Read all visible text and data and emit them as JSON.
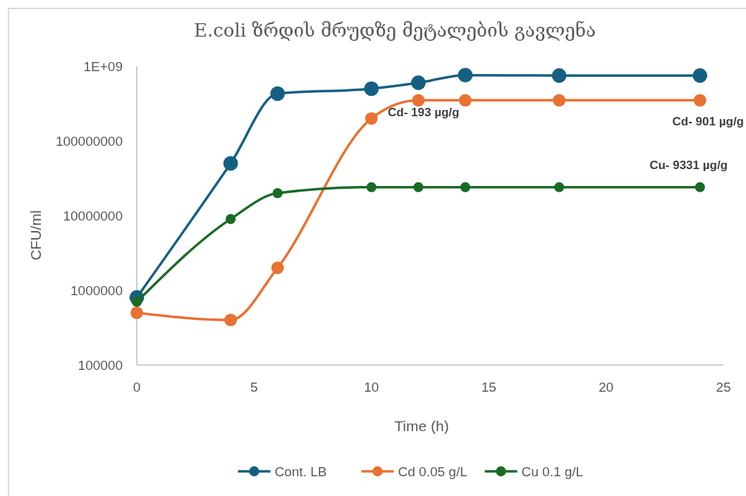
{
  "chart_data": {
    "type": "line",
    "title": "E.coli ზრდის მრუდზე მეტალების გავლენა",
    "xlabel": "Time (h)",
    "ylabel": "CFU/ml",
    "log": "y",
    "x": [
      0,
      4,
      6,
      10,
      12,
      14,
      18,
      24
    ],
    "series": [
      {
        "name": "Cont. LB",
        "color": "#156082",
        "values": [
          800000,
          50000000,
          430000000,
          500000000,
          600000000,
          760000000,
          750000000,
          750000000
        ]
      },
      {
        "name": "Cd 0.05 g/L",
        "color": "#e97132",
        "values": [
          500000,
          400000,
          2000000,
          200000000,
          350000000,
          350000000,
          350000000,
          350000000
        ]
      },
      {
        "name": "Cu 0.1 g/L",
        "color": "#196b24",
        "values": [
          700000,
          9000000,
          20000000,
          24000000,
          24000000,
          24000000,
          24000000,
          24000000
        ]
      }
    ],
    "xlim": [
      0,
      25
    ],
    "xticks": [
      0,
      5,
      10,
      15,
      20,
      25
    ],
    "ylim": [
      100000,
      1000000000
    ],
    "yticks": [
      100000,
      1000000,
      10000000,
      100000000,
      {
        "value": 1000000000,
        "label": "1E+09"
      }
    ],
    "annotations": [
      "Cd- 193 µg/g",
      "Cd- 901 µg/g",
      "Cu- 9331 µg/g"
    ],
    "marker": "circle",
    "grid": false,
    "legend": "bottom"
  }
}
